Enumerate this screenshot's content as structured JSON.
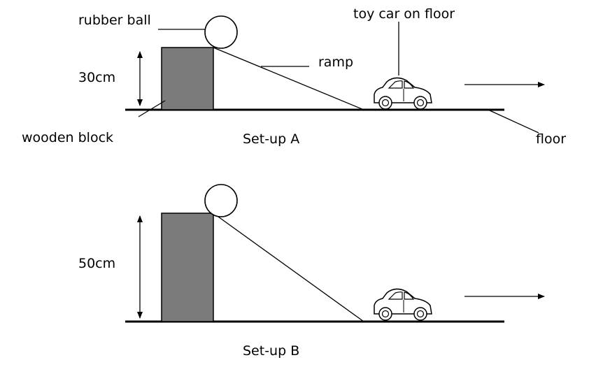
{
  "labels": {
    "rubber_ball": "rubber ball",
    "ramp": "ramp",
    "toy_car": "toy car on floor",
    "wooden_block": "wooden block",
    "floor": "floor"
  },
  "setup_a": {
    "title": "Set-up A",
    "height": "30cm"
  },
  "setup_b": {
    "title": "Set-up B",
    "height": "50cm"
  },
  "colors": {
    "block": "#7b7b7b",
    "line": "#000000",
    "background": "#ffffff"
  }
}
